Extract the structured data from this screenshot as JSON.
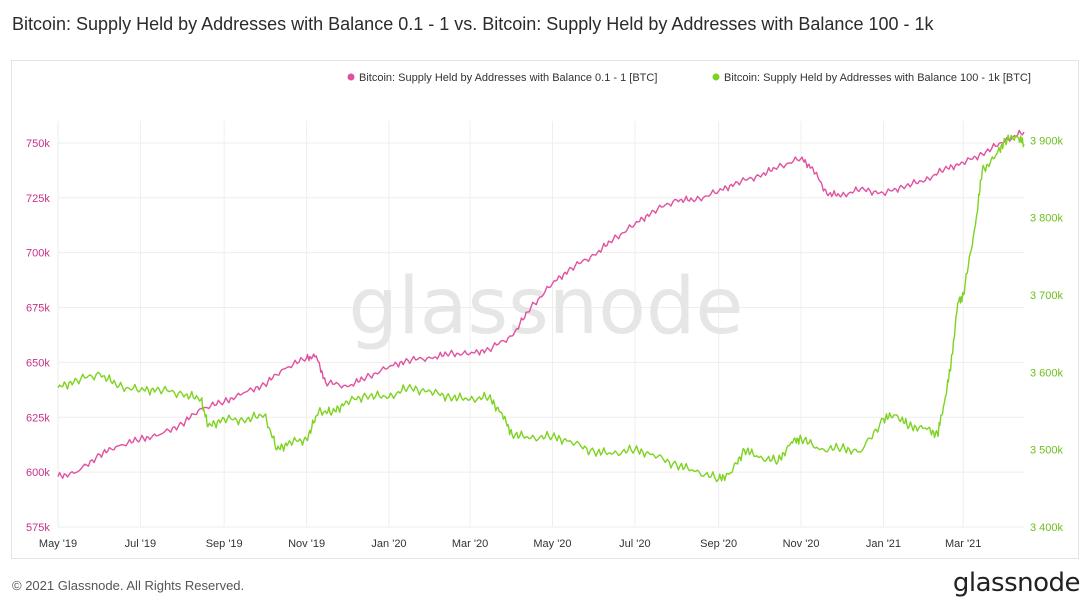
{
  "page": {
    "title": "Bitcoin: Supply Held by Addresses with Balance 0.1 - 1 vs. Bitcoin: Supply Held by Addresses with Balance 100 - 1k",
    "watermark": "glassnode",
    "footer_copyright": "© 2021 Glassnode. All Rights Reserved.",
    "footer_logo": "glassnode"
  },
  "colors": {
    "series_pink": "#e0529f",
    "series_green": "#7ed321",
    "grid": "#eeeeee"
  },
  "chart_data": {
    "type": "line",
    "title": "Bitcoin: Supply Held by Addresses with Balance 0.1 - 1 vs. Bitcoin: Supply Held by Addresses with Balance 100 - 1k",
    "legend_position": "top-right",
    "grid": true,
    "x_ticks": [
      "May '19",
      "Jul '19",
      "Sep '19",
      "Nov '19",
      "Jan '20",
      "Mar '20",
      "May '20",
      "Jul '20",
      "Sep '20",
      "Nov '20",
      "Jan '21",
      "Mar '21"
    ],
    "x_range": [
      "2019-05-01",
      "2021-04-15"
    ],
    "y_left": {
      "ticks": [
        "575k",
        "600k",
        "625k",
        "650k",
        "675k",
        "700k",
        "725k",
        "750k"
      ],
      "range": [
        575000,
        760000
      ]
    },
    "y_right": {
      "ticks": [
        "3 400k",
        "3 500k",
        "3 600k",
        "3 700k",
        "3 800k",
        "3 900k"
      ],
      "range": [
        3400000,
        3925000
      ]
    },
    "series": [
      {
        "name": "Bitcoin: Supply Held by Addresses with Balance 0.1 - 1 [BTC]",
        "axis": "left",
        "points": [
          [
            "2019-05-01",
            598000
          ],
          [
            "2019-05-15",
            600000
          ],
          [
            "2019-06-01",
            608000
          ],
          [
            "2019-06-15",
            612000
          ],
          [
            "2019-07-01",
            615000
          ],
          [
            "2019-07-15",
            617000
          ],
          [
            "2019-08-01",
            622000
          ],
          [
            "2019-08-15",
            629000
          ],
          [
            "2019-09-01",
            632000
          ],
          [
            "2019-09-15",
            636000
          ],
          [
            "2019-10-01",
            640000
          ],
          [
            "2019-10-15",
            647000
          ],
          [
            "2019-11-01",
            652000
          ],
          [
            "2019-11-08",
            653000
          ],
          [
            "2019-11-15",
            641000
          ],
          [
            "2019-12-01",
            639000
          ],
          [
            "2019-12-15",
            643000
          ],
          [
            "2020-01-01",
            648000
          ],
          [
            "2020-01-15",
            651000
          ],
          [
            "2020-02-01",
            652000
          ],
          [
            "2020-02-15",
            654000
          ],
          [
            "2020-03-01",
            654000
          ],
          [
            "2020-03-15",
            656000
          ],
          [
            "2020-04-01",
            662000
          ],
          [
            "2020-04-15",
            675000
          ],
          [
            "2020-05-01",
            686000
          ],
          [
            "2020-05-15",
            693000
          ],
          [
            "2020-06-01",
            699000
          ],
          [
            "2020-06-15",
            706000
          ],
          [
            "2020-07-01",
            713000
          ],
          [
            "2020-07-15",
            719000
          ],
          [
            "2020-08-01",
            724000
          ],
          [
            "2020-08-15",
            724000
          ],
          [
            "2020-09-01",
            728000
          ],
          [
            "2020-09-15",
            732000
          ],
          [
            "2020-10-01",
            735000
          ],
          [
            "2020-10-15",
            739000
          ],
          [
            "2020-11-01",
            743000
          ],
          [
            "2020-11-10",
            738000
          ],
          [
            "2020-11-20",
            727000
          ],
          [
            "2020-12-01",
            726000
          ],
          [
            "2020-12-15",
            729000
          ],
          [
            "2021-01-01",
            727000
          ],
          [
            "2021-01-15",
            730000
          ],
          [
            "2021-02-01",
            733000
          ],
          [
            "2021-02-15",
            738000
          ],
          [
            "2021-03-01",
            741000
          ],
          [
            "2021-03-15",
            745000
          ],
          [
            "2021-04-01",
            751000
          ],
          [
            "2021-04-15",
            755000
          ]
        ]
      },
      {
        "name": "Bitcoin: Supply Held by Addresses with Balance 100 - 1k [BTC]",
        "axis": "right",
        "points": [
          [
            "2019-05-01",
            3580000
          ],
          [
            "2019-05-15",
            3590000
          ],
          [
            "2019-06-01",
            3598000
          ],
          [
            "2019-06-15",
            3582000
          ],
          [
            "2019-07-01",
            3577000
          ],
          [
            "2019-07-15",
            3578000
          ],
          [
            "2019-08-01",
            3572000
          ],
          [
            "2019-08-15",
            3565000
          ],
          [
            "2019-08-20",
            3530000
          ],
          [
            "2019-09-01",
            3540000
          ],
          [
            "2019-09-15",
            3538000
          ],
          [
            "2019-10-01",
            3545000
          ],
          [
            "2019-10-10",
            3500000
          ],
          [
            "2019-10-20",
            3510000
          ],
          [
            "2019-11-01",
            3513000
          ],
          [
            "2019-11-10",
            3550000
          ],
          [
            "2019-11-20",
            3548000
          ],
          [
            "2019-12-01",
            3562000
          ],
          [
            "2019-12-15",
            3570000
          ],
          [
            "2020-01-01",
            3568000
          ],
          [
            "2020-01-15",
            3580000
          ],
          [
            "2020-02-01",
            3575000
          ],
          [
            "2020-02-15",
            3568000
          ],
          [
            "2020-03-01",
            3565000
          ],
          [
            "2020-03-15",
            3568000
          ],
          [
            "2020-03-25",
            3545000
          ],
          [
            "2020-04-01",
            3520000
          ],
          [
            "2020-04-15",
            3515000
          ],
          [
            "2020-05-01",
            3517000
          ],
          [
            "2020-05-15",
            3510000
          ],
          [
            "2020-06-01",
            3497000
          ],
          [
            "2020-06-15",
            3495000
          ],
          [
            "2020-07-01",
            3500000
          ],
          [
            "2020-07-15",
            3493000
          ],
          [
            "2020-08-01",
            3480000
          ],
          [
            "2020-08-15",
            3472000
          ],
          [
            "2020-09-01",
            3462000
          ],
          [
            "2020-09-10",
            3470000
          ],
          [
            "2020-09-20",
            3500000
          ],
          [
            "2020-10-01",
            3490000
          ],
          [
            "2020-10-15",
            3485000
          ],
          [
            "2020-10-25",
            3510000
          ],
          [
            "2020-11-01",
            3515000
          ],
          [
            "2020-11-15",
            3500000
          ],
          [
            "2020-12-01",
            3502000
          ],
          [
            "2020-12-15",
            3497000
          ],
          [
            "2021-01-01",
            3540000
          ],
          [
            "2021-01-10",
            3545000
          ],
          [
            "2021-01-20",
            3530000
          ],
          [
            "2021-02-01",
            3528000
          ],
          [
            "2021-02-10",
            3520000
          ],
          [
            "2021-02-15",
            3560000
          ],
          [
            "2021-02-20",
            3610000
          ],
          [
            "2021-02-25",
            3690000
          ],
          [
            "2021-03-01",
            3700000
          ],
          [
            "2021-03-10",
            3790000
          ],
          [
            "2021-03-15",
            3860000
          ],
          [
            "2021-03-25",
            3880000
          ],
          [
            "2021-04-01",
            3900000
          ],
          [
            "2021-04-10",
            3905000
          ],
          [
            "2021-04-15",
            3895000
          ]
        ]
      }
    ]
  }
}
